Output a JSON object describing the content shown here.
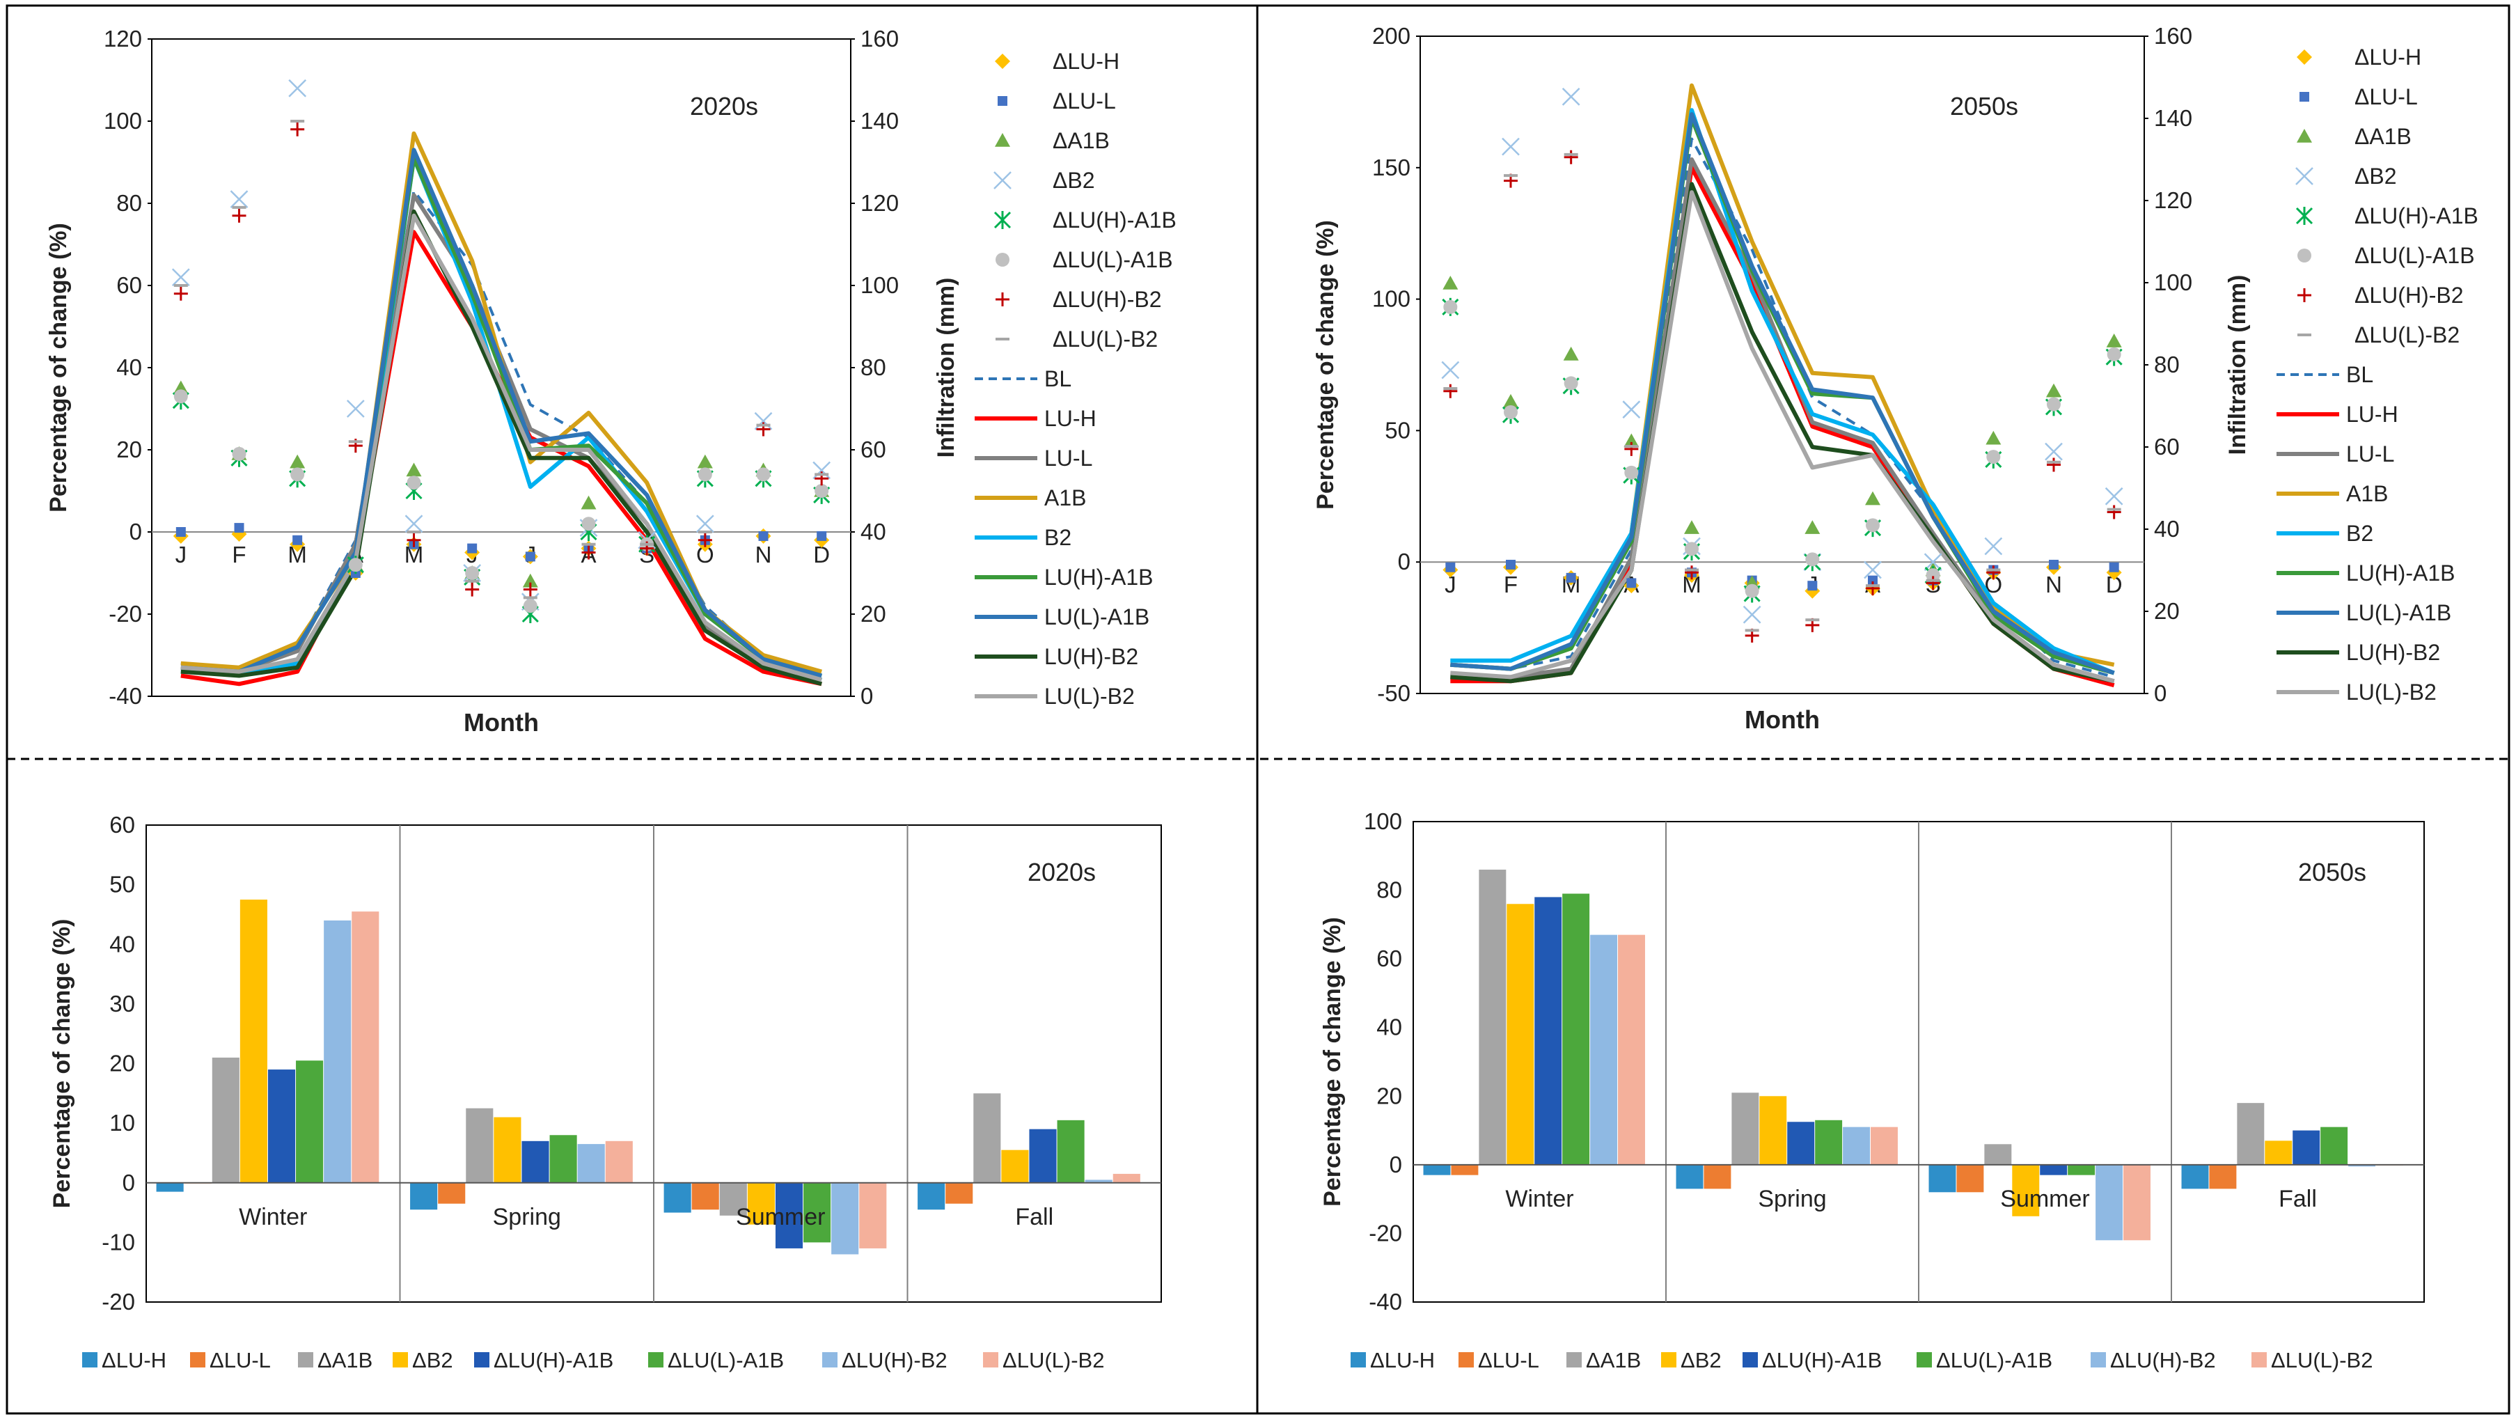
{
  "chart_data": [
    {
      "type": "scatter+line",
      "panel": "top-left",
      "title": "2020s",
      "xlabel": "Month",
      "ylabel": "Percentage of change (%)",
      "y2label": "Infiltration  (mm)",
      "categories": [
        "J",
        "F",
        "M",
        "A",
        "M",
        "J",
        "J",
        "A",
        "S",
        "O",
        "N",
        "D"
      ],
      "ylim": [
        -40,
        120
      ],
      "yticks": [
        -40,
        -20,
        0,
        20,
        40,
        60,
        80,
        100,
        120
      ],
      "y2lim": [
        0,
        160
      ],
      "y2ticks": [
        0,
        20,
        40,
        60,
        80,
        100,
        120,
        140,
        160
      ],
      "scatter_series": [
        {
          "name": "ΔLU-H",
          "marker": "diamond",
          "color": "#FFC000",
          "values": [
            -1,
            -0.5,
            -3,
            -10,
            -3,
            -5,
            -6,
            -4,
            -4,
            -3,
            -1,
            -2
          ]
        },
        {
          "name": "ΔLU-L",
          "marker": "square",
          "color": "#4472C4",
          "values": [
            0,
            1,
            -2,
            -10,
            -3,
            -4,
            -6,
            -4,
            -4,
            -2,
            -1,
            -1
          ]
        },
        {
          "name": "ΔA1B",
          "marker": "triangle",
          "color": "#70AD47",
          "values": [
            35,
            19,
            17,
            -8,
            15,
            -10,
            -12,
            7,
            -3,
            17,
            15,
            10
          ]
        },
        {
          "name": "ΔB2",
          "marker": "x",
          "color": "#9DC3E6",
          "values": [
            62,
            81,
            108,
            30,
            2,
            -10,
            -17,
            1,
            -2,
            2,
            27,
            15
          ]
        },
        {
          "name": "ΔLU(H)-A1B",
          "marker": "asterisk",
          "color": "#00B050",
          "values": [
            32,
            18,
            13,
            -8,
            10,
            -11,
            -20,
            0,
            -3,
            13,
            13,
            9
          ]
        },
        {
          "name": "ΔLU(L)-A1B",
          "marker": "circle",
          "color": "#C0C0C0",
          "values": [
            33,
            19,
            14,
            -8,
            12,
            -10,
            -18,
            2,
            -3,
            14,
            14,
            10
          ]
        },
        {
          "name": "ΔLU(H)-B2",
          "marker": "plus",
          "color": "#C00000",
          "values": [
            58,
            77,
            98,
            21,
            -2,
            -14,
            -14,
            -5,
            -4,
            -2,
            25,
            13
          ]
        },
        {
          "name": "ΔLU(L)-B2",
          "marker": "dash",
          "color": "#A6A6A6",
          "values": [
            60,
            79,
            100,
            22,
            0,
            -12,
            -16,
            -3,
            -3,
            0,
            26,
            14
          ]
        }
      ],
      "line_series": [
        {
          "name": "BL",
          "style": "dashed",
          "color": "#2E75B6",
          "values": [
            8,
            7,
            12,
            38,
            123,
            105,
            71,
            63,
            47,
            22,
            9,
            5
          ]
        },
        {
          "name": "LU-H",
          "style": "solid",
          "color": "#FF0000",
          "values": [
            5,
            3,
            6,
            33,
            113,
            90,
            63,
            56,
            38,
            14,
            6,
            3
          ]
        },
        {
          "name": "LU-L",
          "style": "solid",
          "color": "#808080",
          "values": [
            7,
            6,
            11,
            37,
            122,
            100,
            65,
            58,
            42,
            17,
            8,
            4
          ]
        },
        {
          "name": "A1B",
          "style": "solid",
          "color": "#D4A017",
          "values": [
            8,
            7,
            13,
            34,
            137,
            106,
            57,
            69,
            52,
            21,
            10,
            6
          ]
        },
        {
          "name": "B2",
          "style": "solid",
          "color": "#00B0F0",
          "values": [
            6,
            6,
            8,
            32,
            131,
            96,
            51,
            63,
            45,
            20,
            9,
            4
          ]
        },
        {
          "name": "LU(H)-A1B",
          "style": "solid",
          "color": "#3A9A3A",
          "values": [
            7,
            6,
            12,
            35,
            131,
            98,
            60,
            61,
            47,
            20,
            9,
            5
          ]
        },
        {
          "name": "LU(L)-A1B",
          "style": "solid",
          "color": "#2E75B6",
          "values": [
            7,
            6,
            12,
            35,
            133,
            100,
            62,
            64,
            49,
            21,
            9,
            5
          ]
        },
        {
          "name": "LU(H)-B2",
          "style": "solid",
          "color": "#1E4D1E",
          "values": [
            6,
            5,
            7,
            31,
            118,
            90,
            58,
            58,
            40,
            16,
            7,
            3
          ]
        },
        {
          "name": "LU(L)-B2",
          "style": "solid",
          "color": "#A6A6A6",
          "values": [
            7,
            6,
            9,
            33,
            117,
            92,
            60,
            60,
            42,
            18,
            8,
            4
          ]
        }
      ]
    },
    {
      "type": "scatter+line",
      "panel": "top-right",
      "title": "2050s",
      "xlabel": "Month",
      "ylabel": "Percentage of change (%)",
      "y2label": "Infiltration  (mm)",
      "categories": [
        "J",
        "F",
        "M",
        "A",
        "M",
        "J",
        "J",
        "A",
        "S",
        "O",
        "N",
        "D"
      ],
      "ylim": [
        -50,
        200
      ],
      "yticks": [
        -50,
        0,
        50,
        100,
        150,
        200
      ],
      "y2lim": [
        0,
        160
      ],
      "y2ticks": [
        0,
        20,
        40,
        60,
        80,
        100,
        120,
        140,
        160
      ],
      "scatter_series": [
        {
          "name": "ΔLU-H",
          "marker": "diamond",
          "color": "#FFC000",
          "values": [
            -3,
            -2,
            -6,
            -9,
            -5,
            -8,
            -11,
            -10,
            -8,
            -4,
            -2,
            -4
          ]
        },
        {
          "name": "ΔLU-L",
          "marker": "square",
          "color": "#4472C4",
          "values": [
            -2,
            -1,
            -6,
            -8,
            -4,
            -7,
            -9,
            -7,
            -7,
            -3,
            -1,
            -2
          ]
        },
        {
          "name": "ΔA1B",
          "marker": "triangle",
          "color": "#70AD47",
          "values": [
            106,
            61,
            79,
            46,
            13,
            -8,
            13,
            24,
            -3,
            47,
            65,
            84
          ]
        },
        {
          "name": "ΔB2",
          "marker": "x",
          "color": "#9DC3E6",
          "values": [
            73,
            158,
            177,
            58,
            6,
            -20,
            0,
            -3,
            0,
            6,
            42,
            25
          ]
        },
        {
          "name": "ΔLU(H)-A1B",
          "marker": "asterisk",
          "color": "#00B050",
          "values": [
            97,
            56,
            67,
            33,
            4,
            -12,
            0,
            13,
            -5,
            39,
            59,
            78
          ]
        },
        {
          "name": "ΔLU(L)-A1B",
          "marker": "circle",
          "color": "#C0C0C0",
          "values": [
            97,
            57,
            68,
            34,
            5,
            -11,
            1,
            14,
            -5,
            40,
            60,
            79
          ]
        },
        {
          "name": "ΔLU(H)-B2",
          "marker": "plus",
          "color": "#C00000",
          "values": [
            65,
            145,
            154,
            43,
            -4,
            -28,
            -24,
            -10,
            -8,
            -4,
            37,
            19
          ]
        },
        {
          "name": "ΔLU(L)-B2",
          "marker": "dash",
          "color": "#A6A6A6",
          "values": [
            66,
            147,
            155,
            44,
            -3,
            -26,
            -22,
            -9,
            -7,
            -3,
            38,
            20
          ]
        }
      ],
      "line_series": [
        {
          "name": "BL",
          "style": "dashed",
          "color": "#2E75B6",
          "values": [
            7,
            6,
            9,
            35,
            135,
            108,
            72,
            63,
            44,
            22,
            8,
            4
          ]
        },
        {
          "name": "LU-H",
          "style": "solid",
          "color": "#FF0000",
          "values": [
            3,
            3,
            5,
            32,
            128,
            100,
            65,
            60,
            38,
            17,
            6,
            2
          ]
        },
        {
          "name": "LU-L",
          "style": "solid",
          "color": "#808080",
          "values": [
            4,
            4,
            6,
            33,
            130,
            102,
            66,
            61,
            39,
            18,
            7,
            3
          ]
        },
        {
          "name": "A1B",
          "style": "solid",
          "color": "#D4A017",
          "values": [
            7,
            6,
            11,
            39,
            148,
            110,
            78,
            77,
            45,
            21,
            10,
            7
          ]
        },
        {
          "name": "B2",
          "style": "solid",
          "color": "#00B0F0",
          "values": [
            8,
            8,
            14,
            39,
            142,
            98,
            68,
            63,
            46,
            22,
            11,
            5
          ]
        },
        {
          "name": "LU(H)-A1B",
          "style": "solid",
          "color": "#3A9A3A",
          "values": [
            7,
            6,
            11,
            37,
            140,
            103,
            73,
            72,
            43,
            19,
            9,
            5
          ]
        },
        {
          "name": "LU(L)-A1B",
          "style": "solid",
          "color": "#2E75B6",
          "values": [
            7,
            6,
            12,
            38,
            141,
            104,
            74,
            72,
            43,
            20,
            10,
            5
          ]
        },
        {
          "name": "LU(H)-B2",
          "style": "solid",
          "color": "#1E4D1E",
          "values": [
            4,
            3,
            5,
            30,
            124,
            88,
            60,
            58,
            38,
            17,
            6,
            3
          ]
        },
        {
          "name": "LU(L)-B2",
          "style": "solid",
          "color": "#A6A6A6",
          "values": [
            5,
            4,
            8,
            30,
            122,
            84,
            55,
            58,
            37,
            18,
            7,
            3
          ]
        }
      ]
    },
    {
      "type": "bar",
      "panel": "bottom-left",
      "title": "2020s",
      "ylabel": "Percentage of change (%)",
      "categories": [
        "Winter",
        "Spring",
        "Summer",
        "Fall"
      ],
      "ylim": [
        -20,
        60
      ],
      "yticks": [
        -20,
        -10,
        0,
        10,
        20,
        30,
        40,
        50,
        60
      ],
      "series": [
        {
          "name": "ΔLU-H",
          "color": "#2E8FC9",
          "values": [
            -1.5,
            -4.5,
            -5,
            -4.5
          ]
        },
        {
          "name": "ΔLU-L",
          "color": "#ED7D31",
          "values": [
            0,
            -3.5,
            -4.5,
            -3.5
          ]
        },
        {
          "name": "ΔA1B",
          "color": "#A5A5A5",
          "values": [
            21,
            12.5,
            -5.5,
            15
          ]
        },
        {
          "name": "ΔB2",
          "color": "#FFC000",
          "values": [
            47.5,
            11,
            -7,
            5.5
          ]
        },
        {
          "name": "ΔLU(H)-A1B",
          "color": "#2159B4",
          "values": [
            19,
            7,
            -11,
            9
          ]
        },
        {
          "name": "ΔLU(L)-A1B",
          "color": "#4CA83C",
          "values": [
            20.5,
            8,
            -10,
            10.5
          ]
        },
        {
          "name": "ΔLU(H)-B2",
          "color": "#8FB9E3",
          "values": [
            44,
            6.5,
            -12,
            0.5
          ]
        },
        {
          "name": "ΔLU(L)-B2",
          "color": "#F4B09B",
          "values": [
            45.5,
            7,
            -11,
            1.5
          ]
        }
      ]
    },
    {
      "type": "bar",
      "panel": "bottom-right",
      "title": "2050s",
      "ylabel": "Percentage of change (%)",
      "categories": [
        "Winter",
        "Spring",
        "Summer",
        "Fall"
      ],
      "ylim": [
        -40,
        100
      ],
      "yticks": [
        -40,
        -20,
        0,
        20,
        40,
        60,
        80,
        100
      ],
      "series": [
        {
          "name": "ΔLU-H",
          "color": "#2E8FC9",
          "values": [
            -3,
            -7,
            -8,
            -7
          ]
        },
        {
          "name": "ΔLU-L",
          "color": "#ED7D31",
          "values": [
            -3,
            -7,
            -8,
            -7
          ]
        },
        {
          "name": "ΔA1B",
          "color": "#A5A5A5",
          "values": [
            86,
            21,
            6,
            18
          ]
        },
        {
          "name": "ΔB2",
          "color": "#FFC000",
          "values": [
            76,
            20,
            -15,
            7
          ]
        },
        {
          "name": "ΔLU(H)-A1B",
          "color": "#2159B4",
          "values": [
            78,
            12.5,
            -3,
            10
          ]
        },
        {
          "name": "ΔLU(L)-A1B",
          "color": "#4CA83C",
          "values": [
            79,
            13,
            -3,
            11
          ]
        },
        {
          "name": "ΔLU(H)-B2",
          "color": "#8FB9E3",
          "values": [
            67,
            11,
            -22,
            -0.5
          ]
        },
        {
          "name": "ΔLU(L)-B2",
          "color": "#F4B09B",
          "values": [
            67,
            11,
            -22,
            0
          ]
        }
      ]
    }
  ]
}
